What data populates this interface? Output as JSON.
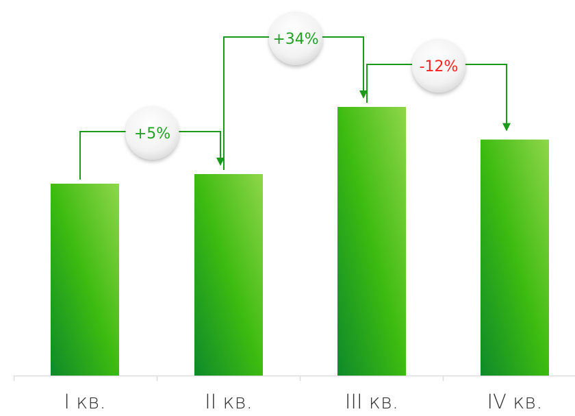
{
  "chart_data": {
    "type": "bar",
    "title": "",
    "xlabel": "",
    "ylabel": "",
    "categories": [
      "I кв.",
      "II кв.",
      "III кв.",
      "IV кв."
    ],
    "values": [
      100,
      105,
      140,
      123
    ],
    "ylim": [
      0,
      160
    ],
    "grid": false,
    "legend": "none",
    "changes": [
      {
        "from": 0,
        "to": 1,
        "label": "+5%",
        "color": "#22a022"
      },
      {
        "from": 1,
        "to": 2,
        "label": "+34%",
        "color": "#22a022"
      },
      {
        "from": 2,
        "to": 3,
        "label": "-12%",
        "color": "#ff2222"
      }
    ],
    "colors": {
      "bar_light": "#8fd64a",
      "bar_mid": "#3dbb10",
      "bar_dark": "#0e8a2a",
      "connector": "#1a9a1a",
      "axis": "#dddddd",
      "positive": "#22a022",
      "negative": "#ff2222"
    }
  }
}
